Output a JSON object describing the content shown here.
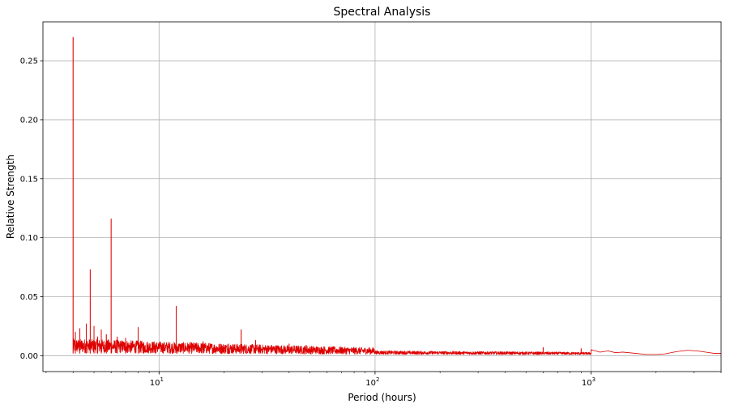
{
  "chart_data": {
    "type": "line",
    "title": "Spectral Analysis",
    "xlabel": "Period (hours)",
    "ylabel": "Relative Strength",
    "x_scale": "log",
    "xlim": [
      2.9,
      4000
    ],
    "ylim": [
      -0.0135,
      0.283
    ],
    "grid": true,
    "x_ticks": [
      {
        "value": 10,
        "base": "10",
        "exp": "1"
      },
      {
        "value": 100,
        "base": "10",
        "exp": "2"
      },
      {
        "value": 1000,
        "base": "10",
        "exp": "3"
      }
    ],
    "y_ticks": [
      {
        "value": 0.0,
        "label": "0.00"
      },
      {
        "value": 0.05,
        "label": "0.05"
      },
      {
        "value": 0.1,
        "label": "0.10"
      },
      {
        "value": 0.15,
        "label": "0.15"
      },
      {
        "value": 0.2,
        "label": "0.20"
      },
      {
        "value": 0.25,
        "label": "0.25"
      }
    ],
    "series": [
      {
        "color": "#dd0000",
        "peaks": [
          {
            "x": 4.0,
            "y": 0.27
          },
          {
            "x": 4.1,
            "y": 0.02
          },
          {
            "x": 4.3,
            "y": 0.023
          },
          {
            "x": 4.6,
            "y": 0.027
          },
          {
            "x": 4.8,
            "y": 0.073
          },
          {
            "x": 5.0,
            "y": 0.025
          },
          {
            "x": 5.2,
            "y": 0.016
          },
          {
            "x": 5.4,
            "y": 0.022
          },
          {
            "x": 5.7,
            "y": 0.018
          },
          {
            "x": 6.0,
            "y": 0.116
          },
          {
            "x": 6.4,
            "y": 0.016
          },
          {
            "x": 7.0,
            "y": 0.015
          },
          {
            "x": 8.0,
            "y": 0.024
          },
          {
            "x": 8.5,
            "y": 0.009
          },
          {
            "x": 9.6,
            "y": 0.01
          },
          {
            "x": 12.0,
            "y": 0.042
          },
          {
            "x": 16.0,
            "y": 0.012
          },
          {
            "x": 21.0,
            "y": 0.01
          },
          {
            "x": 24.0,
            "y": 0.022
          },
          {
            "x": 28.0,
            "y": 0.013
          },
          {
            "x": 40.0,
            "y": 0.01
          },
          {
            "x": 48.0,
            "y": 0.009
          },
          {
            "x": 600.0,
            "y": 0.007
          },
          {
            "x": 900.0,
            "y": 0.006
          }
        ],
        "envelope": [
          {
            "x": 4.0,
            "y": 0.009
          },
          {
            "x": 6.0,
            "y": 0.0085
          },
          {
            "x": 10.0,
            "y": 0.0075
          },
          {
            "x": 20.0,
            "y": 0.0065
          },
          {
            "x": 40.0,
            "y": 0.0055
          },
          {
            "x": 80.0,
            "y": 0.0045
          },
          {
            "x": 150.0,
            "y": 0.004
          },
          {
            "x": 400.0,
            "y": 0.0035
          },
          {
            "x": 1000.0,
            "y": 0.003
          },
          {
            "x": 4000.0,
            "y": 0.003
          }
        ],
        "tail": [
          {
            "x": 1000,
            "y": 0.005
          },
          {
            "x": 1100,
            "y": 0.003
          },
          {
            "x": 1200,
            "y": 0.004
          },
          {
            "x": 1300,
            "y": 0.0025
          },
          {
            "x": 1400,
            "y": 0.003
          },
          {
            "x": 1600,
            "y": 0.002
          },
          {
            "x": 1800,
            "y": 0.001
          },
          {
            "x": 2000,
            "y": 0.001
          },
          {
            "x": 2200,
            "y": 0.0015
          },
          {
            "x": 2500,
            "y": 0.0035
          },
          {
            "x": 2800,
            "y": 0.0045
          },
          {
            "x": 3100,
            "y": 0.004
          },
          {
            "x": 3400,
            "y": 0.003
          },
          {
            "x": 3700,
            "y": 0.002
          },
          {
            "x": 4000,
            "y": 0.002
          }
        ]
      }
    ]
  }
}
